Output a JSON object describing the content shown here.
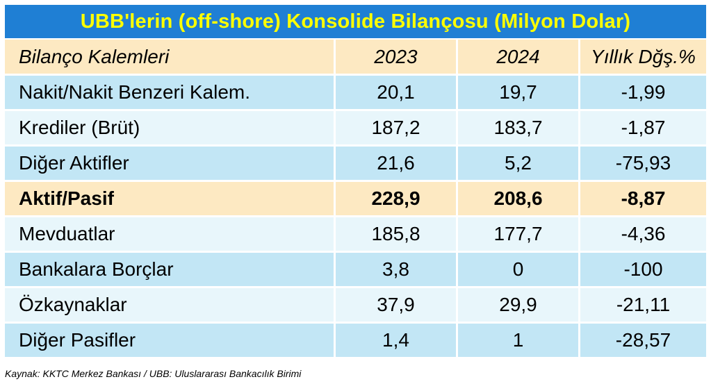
{
  "title": "UBB'lerin (off-shore) Konsolide Bilançosu (Milyon Dolar)",
  "header": {
    "label": "Bilanço Kalemleri",
    "col_2023": "2023",
    "col_2024": "2024",
    "col_change": "Yıllık Dğş.%"
  },
  "rows": [
    {
      "label": "Nakit/Nakit Benzeri Kalem.",
      "v2023": "20,1",
      "v2024": "19,7",
      "change": "-1,99"
    },
    {
      "label": "Krediler (Brüt)",
      "v2023": "187,2",
      "v2024": "183,7",
      "change": "-1,87"
    },
    {
      "label": "Diğer Aktifler",
      "v2023": "21,6",
      "v2024": "5,2",
      "change": "-75,93"
    },
    {
      "label": "Aktif/Pasif",
      "v2023": "228,9",
      "v2024": "208,6",
      "change": "-8,87"
    },
    {
      "label": "Mevduatlar",
      "v2023": "185,8",
      "v2024": "177,7",
      "change": "-4,36"
    },
    {
      "label": "Bankalara Borçlar",
      "v2023": "3,8",
      "v2024": "0",
      "change": "-100"
    },
    {
      "label": "Özkaynaklar",
      "v2023": "37,9",
      "v2024": "29,9",
      "change": "-21,11"
    },
    {
      "label": "Diğer Pasifler",
      "v2023": "1,4",
      "v2024": "1",
      "change": "-28,57"
    }
  ],
  "source": "Kaynak: KKTC Merkez Bankası / UBB: Uluslararası Bankacılık Birimi",
  "colors": {
    "title_bg": "#1f7fd4",
    "title_text": "#ffff00",
    "header_bg": "#fde9c2",
    "row_blue": "#c2e6f5",
    "row_light": "#e8f6fb"
  }
}
